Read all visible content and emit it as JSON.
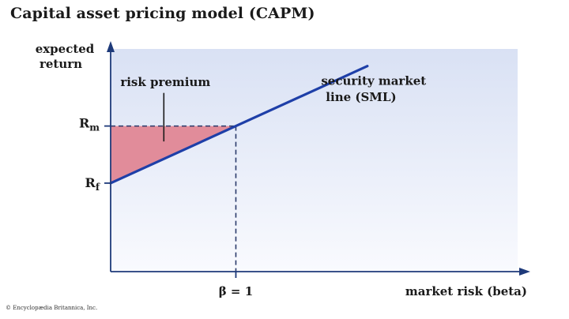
{
  "title": "Capital asset pricing model (CAPM)",
  "credit": "© Encyclopædia Britannica, Inc.",
  "colors": {
    "line": "#1e3fa8",
    "risk_premium_fill": "#e18c9a",
    "background_top": "#d9e1f4",
    "background_bottom": "#f9fafe",
    "dashed": "#2a3a6a"
  },
  "chart_data": {
    "type": "line",
    "title": "Capital asset pricing model (CAPM)",
    "xlabel": "market risk (beta)",
    "ylabel_lines": [
      "expected",
      "return"
    ],
    "ticks": {
      "x": [
        {
          "label": "β = 1",
          "value": 1
        }
      ],
      "y": [
        {
          "base": "R",
          "sub": "m",
          "value": 2
        },
        {
          "base": "R",
          "sub": "f",
          "value": 1
        }
      ]
    },
    "series": [
      {
        "name": "security market line (SML)",
        "x": [
          0,
          2.05
        ],
        "y": [
          1,
          3.05
        ]
      }
    ],
    "xlim": [
      0,
      3.25
    ],
    "ylim": [
      -0.55,
      3.35
    ],
    "annotations": {
      "risk_premium": "risk premium",
      "sml_label_lines": [
        "security market",
        "line (SML)"
      ]
    }
  }
}
